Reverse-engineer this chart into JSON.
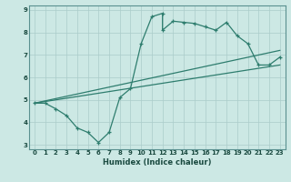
{
  "title": "",
  "xlabel": "Humidex (Indice chaleur)",
  "bg_color": "#cce8e4",
  "grid_color": "#aaccca",
  "line_color": "#2e7d6e",
  "xlim": [
    -0.5,
    23.5
  ],
  "ylim": [
    2.8,
    9.2
  ],
  "yticks": [
    3,
    4,
    5,
    6,
    7,
    8,
    9
  ],
  "xticks": [
    0,
    1,
    2,
    3,
    4,
    5,
    6,
    7,
    8,
    9,
    10,
    11,
    12,
    13,
    14,
    15,
    16,
    17,
    18,
    19,
    20,
    21,
    22,
    23
  ],
  "line1_x": [
    0,
    1,
    2,
    3,
    4,
    5,
    6,
    7,
    8,
    9,
    10,
    11,
    12,
    12,
    13,
    14,
    15,
    16,
    17,
    18,
    19,
    20,
    21,
    22,
    23
  ],
  "line1_y": [
    4.85,
    4.85,
    4.6,
    4.3,
    3.75,
    3.55,
    3.1,
    3.55,
    5.1,
    5.5,
    7.5,
    8.7,
    8.85,
    8.1,
    8.5,
    8.45,
    8.4,
    8.25,
    8.1,
    8.45,
    7.85,
    7.5,
    6.55,
    6.55,
    6.9
  ],
  "line2_x": [
    0,
    23
  ],
  "line2_y": [
    4.85,
    6.55
  ],
  "line3_x": [
    0,
    23
  ],
  "line3_y": [
    4.85,
    7.2
  ],
  "spine_color": "#5a9090"
}
